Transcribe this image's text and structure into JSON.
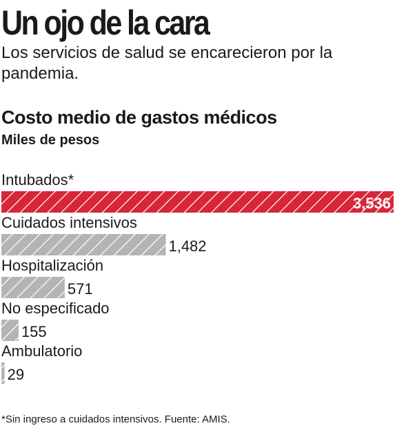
{
  "headline": "Un ojo de la cara",
  "dek": "Los servicios de salud se encarecieron por la pandemia.",
  "note": "*Sin ingreso a cuidados intensivos. Fuente: AMIS.",
  "colors": {
    "highlight": "#d72638",
    "bar": "#b4b4b4",
    "hatch": "#ffffff"
  },
  "chart_data": {
    "type": "bar",
    "orientation": "horizontal",
    "title": "Costo medio de gastos médicos",
    "subtitle": "Miles de pesos",
    "categories": [
      "Intubados*",
      "Cuidados intensivos",
      "Hospitalización",
      "No especificado",
      "Ambulatorio"
    ],
    "values": [
      3536,
      1482,
      571,
      155,
      29
    ],
    "value_labels": [
      "3,536",
      "1,482",
      "571",
      "155",
      "29"
    ],
    "highlight_index": 0,
    "xlim": [
      0,
      3536
    ],
    "grid": false,
    "legend": "none"
  }
}
